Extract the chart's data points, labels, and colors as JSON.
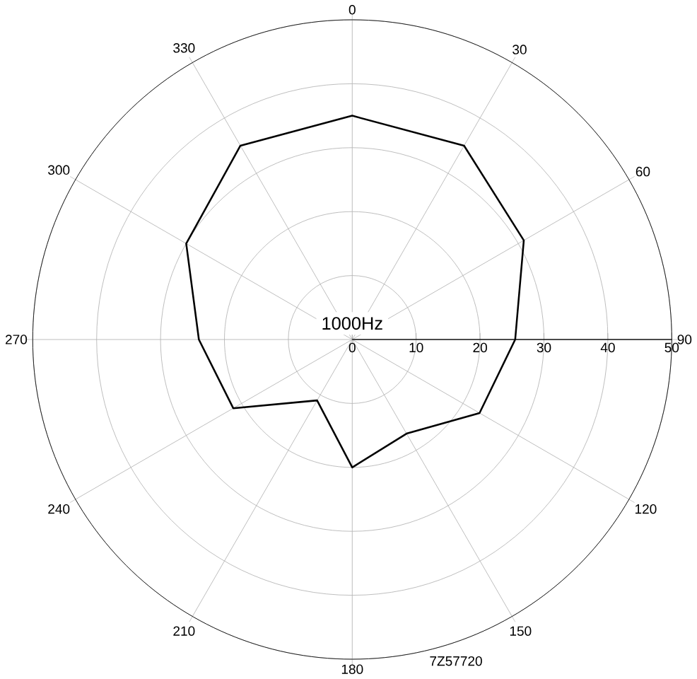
{
  "chart_data": {
    "type": "radar",
    "categories": [
      "0",
      "30",
      "60",
      "90",
      "120",
      "150",
      "180",
      "210",
      "240",
      "270",
      "300",
      "330"
    ],
    "series": [
      {
        "color": "#000000",
        "values": [
          35,
          35,
          31,
          25.5,
          23,
          17,
          20,
          11,
          21.5,
          24,
          30,
          35
        ]
      }
    ],
    "ylim": [
      0,
      50
    ],
    "yticks": [
      0,
      10,
      20,
      30,
      40,
      50
    ],
    "grid": true,
    "annotations": [
      "1000Hz",
      "7Z57720"
    ]
  }
}
